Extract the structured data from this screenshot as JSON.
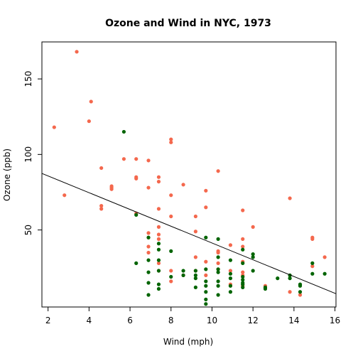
{
  "chart_data": {
    "type": "scatter",
    "title": "Ozone and Wind in NYC, 1973",
    "xlabel": "Wind (mph)",
    "ylabel": "Ozone (ppb)",
    "xlim": [
      1.7,
      16.05
    ],
    "ylim": [
      -1,
      174.5
    ],
    "xticks": [
      2,
      4,
      6,
      8,
      10,
      12,
      14,
      16
    ],
    "xtick_labels": [
      "2",
      "4",
      "6",
      "8",
      "10",
      "12",
      "14",
      "16"
    ],
    "yticks": [
      50,
      100,
      150
    ],
    "ytick_labels": [
      "50",
      "100",
      "150"
    ],
    "grid": false,
    "legend": false,
    "colors": {
      "high_ozone": "#f4684d",
      "low_ozone": "#006400",
      "regression_line": "#000000"
    },
    "trend_line": {
      "intercept": 96.87,
      "slope": -5.55
    },
    "series": [
      {
        "color_key": "high_ozone",
        "points": [
          [
            2.3,
            118
          ],
          [
            2.8,
            73
          ],
          [
            3.4,
            168
          ],
          [
            4.0,
            122
          ],
          [
            4.1,
            135
          ],
          [
            4.6,
            91
          ],
          [
            4.6,
            66
          ],
          [
            4.6,
            64
          ],
          [
            5.1,
            78
          ],
          [
            5.1,
            79
          ],
          [
            5.1,
            77
          ],
          [
            5.7,
            97
          ],
          [
            6.3,
            97
          ],
          [
            6.3,
            85
          ],
          [
            6.3,
            84
          ],
          [
            6.3,
            61
          ],
          [
            6.9,
            96
          ],
          [
            6.9,
            78
          ],
          [
            6.9,
            48
          ],
          [
            6.9,
            45
          ],
          [
            6.9,
            39
          ],
          [
            6.9,
            35
          ],
          [
            7.4,
            85
          ],
          [
            7.4,
            82
          ],
          [
            7.4,
            64
          ],
          [
            7.4,
            52
          ],
          [
            7.4,
            47
          ],
          [
            7.4,
            44
          ],
          [
            7.4,
            28
          ],
          [
            7.4,
            23
          ],
          [
            8.0,
            110
          ],
          [
            8.0,
            108
          ],
          [
            8.0,
            73
          ],
          [
            8.0,
            59
          ],
          [
            8.0,
            23
          ],
          [
            8.0,
            16
          ],
          [
            8.6,
            80
          ],
          [
            8.6,
            20
          ],
          [
            9.2,
            59
          ],
          [
            9.2,
            49
          ],
          [
            9.2,
            32
          ],
          [
            9.2,
            23
          ],
          [
            9.7,
            76
          ],
          [
            9.7,
            65
          ],
          [
            9.7,
            29
          ],
          [
            9.7,
            20
          ],
          [
            10.3,
            89
          ],
          [
            10.3,
            36
          ],
          [
            10.3,
            35
          ],
          [
            10.3,
            28
          ],
          [
            10.3,
            24
          ],
          [
            10.9,
            40
          ],
          [
            10.9,
            23
          ],
          [
            10.9,
            14
          ],
          [
            11.5,
            63
          ],
          [
            11.5,
            44
          ],
          [
            11.5,
            39
          ],
          [
            11.5,
            29
          ],
          [
            11.5,
            22
          ],
          [
            11.5,
            20
          ],
          [
            11.5,
            13
          ],
          [
            12.0,
            52
          ],
          [
            12.6,
            13
          ],
          [
            13.8,
            71
          ],
          [
            13.8,
            9
          ],
          [
            14.3,
            7
          ],
          [
            14.9,
            45
          ],
          [
            14.9,
            44
          ],
          [
            14.9,
            26
          ],
          [
            15.5,
            32
          ]
        ]
      },
      {
        "color_key": "low_ozone",
        "points": [
          [
            5.7,
            115
          ],
          [
            6.3,
            60
          ],
          [
            6.3,
            28
          ],
          [
            6.9,
            45
          ],
          [
            6.9,
            30
          ],
          [
            6.9,
            22
          ],
          [
            6.9,
            15
          ],
          [
            6.9,
            7
          ],
          [
            7.4,
            41
          ],
          [
            7.4,
            37
          ],
          [
            7.4,
            30
          ],
          [
            7.4,
            23
          ],
          [
            7.4,
            14
          ],
          [
            7.4,
            11
          ],
          [
            8.0,
            36
          ],
          [
            8.0,
            19
          ],
          [
            8.6,
            23
          ],
          [
            8.6,
            20
          ],
          [
            9.2,
            23
          ],
          [
            9.2,
            20
          ],
          [
            9.2,
            18
          ],
          [
            9.2,
            12
          ],
          [
            9.7,
            45
          ],
          [
            9.7,
            24
          ],
          [
            9.7,
            16
          ],
          [
            9.7,
            13
          ],
          [
            9.7,
            9
          ],
          [
            9.7,
            4
          ],
          [
            9.7,
            1
          ],
          [
            10.3,
            44
          ],
          [
            10.3,
            32
          ],
          [
            10.3,
            24
          ],
          [
            10.3,
            22
          ],
          [
            10.3,
            16
          ],
          [
            10.3,
            13
          ],
          [
            10.3,
            7
          ],
          [
            10.9,
            30
          ],
          [
            10.9,
            21
          ],
          [
            10.9,
            18
          ],
          [
            10.9,
            13
          ],
          [
            10.9,
            9
          ],
          [
            11.5,
            37
          ],
          [
            11.5,
            28
          ],
          [
            11.5,
            19
          ],
          [
            11.5,
            17
          ],
          [
            11.5,
            15
          ],
          [
            11.5,
            14
          ],
          [
            11.5,
            12
          ],
          [
            12.0,
            34
          ],
          [
            12.0,
            32
          ],
          [
            12.0,
            23
          ],
          [
            12.6,
            12
          ],
          [
            12.6,
            11
          ],
          [
            13.2,
            18
          ],
          [
            13.8,
            20
          ],
          [
            13.8,
            18
          ],
          [
            14.3,
            14
          ],
          [
            14.3,
            13
          ],
          [
            14.3,
            9
          ],
          [
            14.9,
            28
          ],
          [
            14.9,
            21
          ],
          [
            15.5,
            21
          ]
        ]
      }
    ]
  }
}
